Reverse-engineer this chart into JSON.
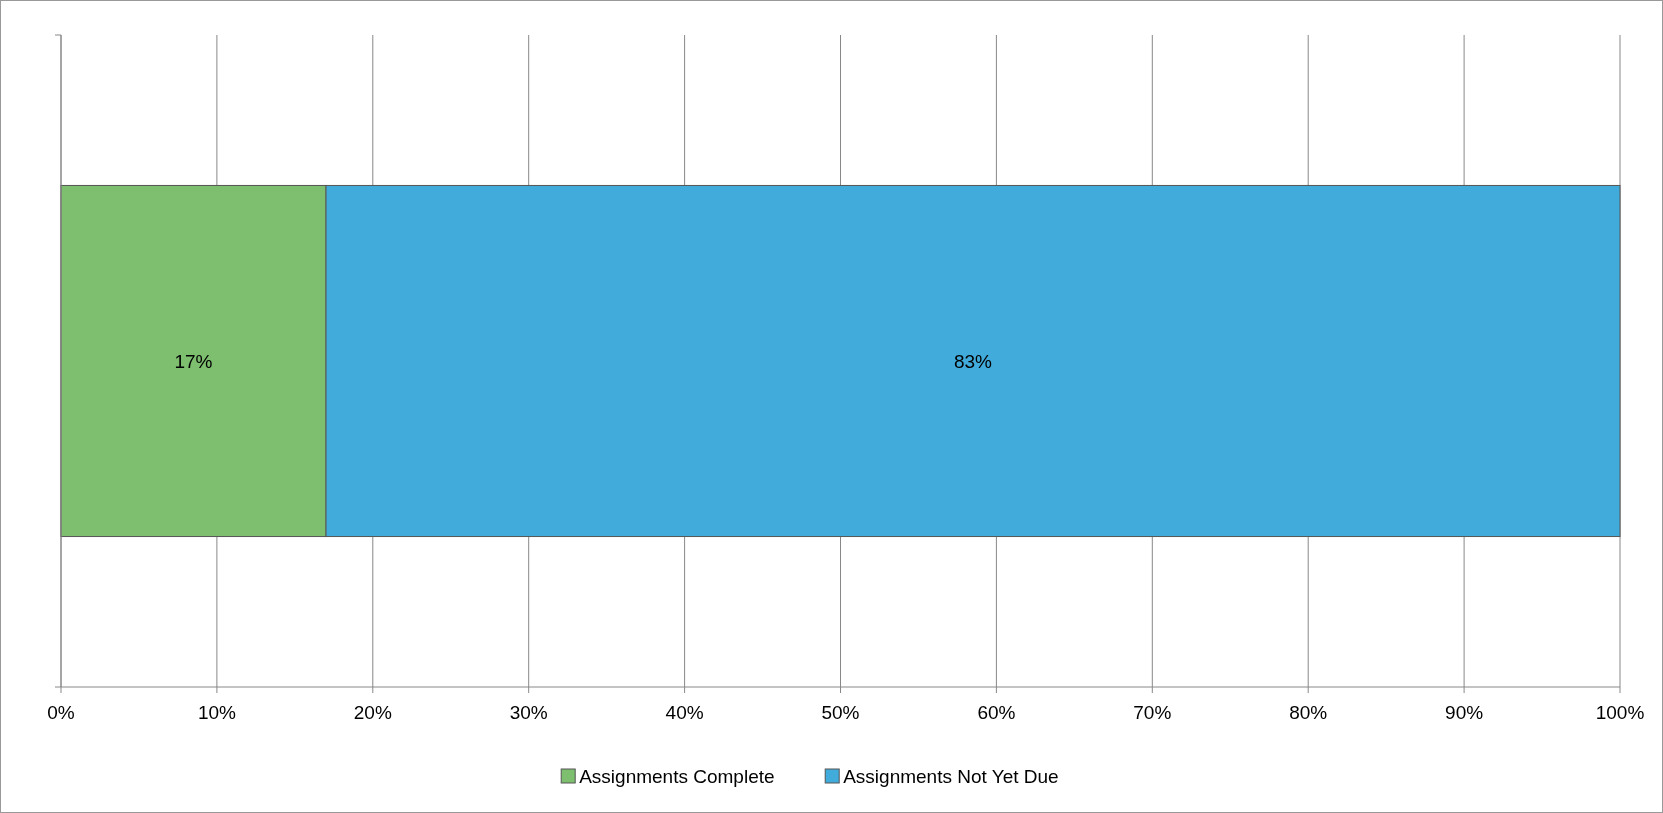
{
  "chart_data": {
    "type": "bar",
    "orientation": "horizontal",
    "stacked": true,
    "categories": [
      null
    ],
    "series": [
      {
        "name": "Assignments Complete",
        "color": "#7dbf6e",
        "values": [
          17
        ],
        "value_labels": [
          "17%"
        ]
      },
      {
        "name": "Assignments Not Yet Due",
        "color": "#41acdc",
        "values": [
          83
        ],
        "value_labels": [
          "83%"
        ]
      }
    ],
    "xlim": [
      0,
      100
    ],
    "xticks": [
      {
        "value": 0,
        "label": "0%"
      },
      {
        "value": 10,
        "label": "10%"
      },
      {
        "value": 20,
        "label": "20%"
      },
      {
        "value": 30,
        "label": "30%"
      },
      {
        "value": 40,
        "label": "40%"
      },
      {
        "value": 50,
        "label": "50%"
      },
      {
        "value": 60,
        "label": "60%"
      },
      {
        "value": 70,
        "label": "70%"
      },
      {
        "value": 80,
        "label": "80%"
      },
      {
        "value": 90,
        "label": "90%"
      },
      {
        "value": 100,
        "label": "100%"
      }
    ],
    "grid": "x",
    "legend": "bottom"
  }
}
